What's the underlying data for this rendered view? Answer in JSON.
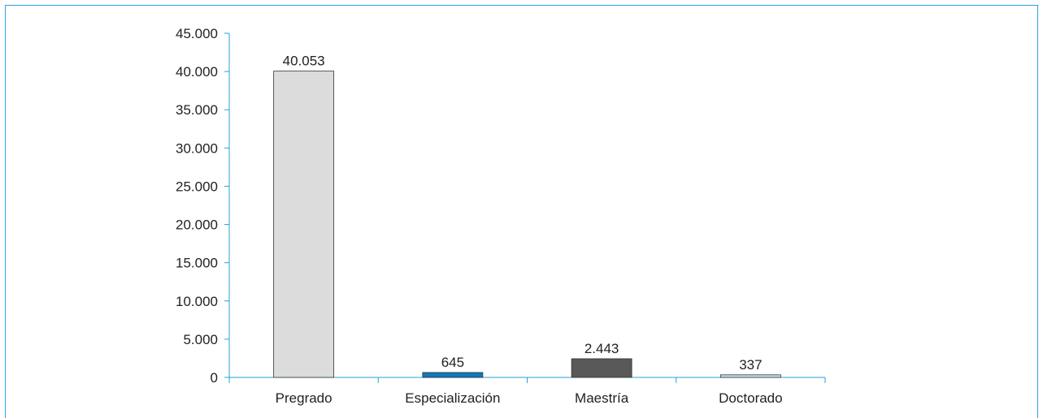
{
  "chart_data": {
    "type": "bar",
    "categories": [
      "Pregrado",
      "Especialización",
      "Maestría",
      "Doctorado"
    ],
    "values": [
      40053,
      645,
      2443,
      337
    ],
    "value_labels": [
      "40.053",
      "645",
      "2.443",
      "337"
    ],
    "bar_colors": [
      "#dcdcdc",
      "#1177bb",
      "#595959",
      "#c5dcef"
    ],
    "ylim": [
      0,
      45000
    ],
    "yticks": [
      0,
      5000,
      10000,
      15000,
      20000,
      25000,
      30000,
      35000,
      40000,
      45000
    ],
    "ytick_labels": [
      "0",
      "5.000",
      "10.000",
      "15.000",
      "20.000",
      "25.000",
      "30.000",
      "35.000",
      "40.000",
      "45.000"
    ],
    "title": "",
    "xlabel": "",
    "ylabel": "",
    "grid": false,
    "legend": "none",
    "frame_color": "#2aa0d8",
    "axis_color": "#2aa0d8"
  }
}
